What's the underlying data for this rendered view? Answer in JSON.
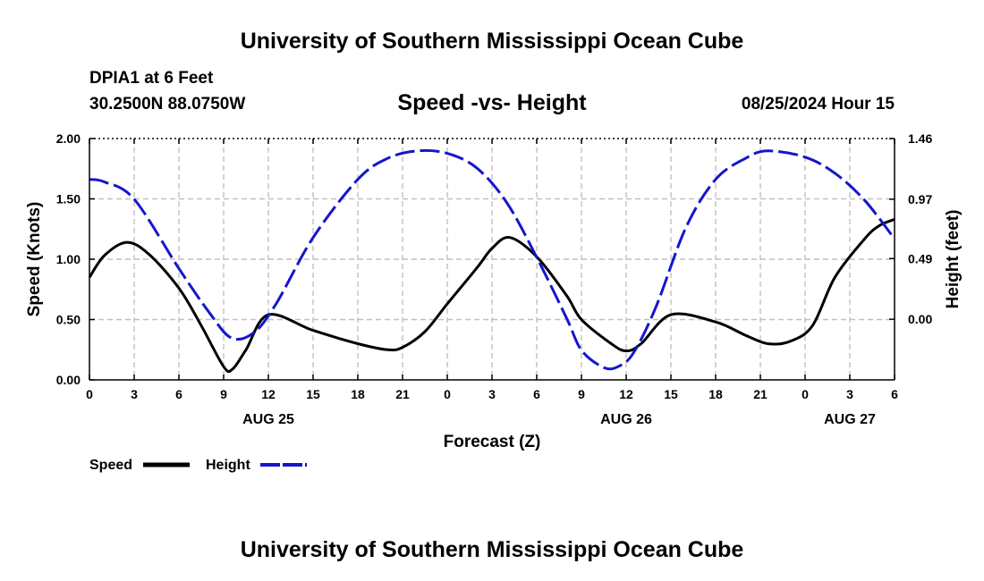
{
  "header": {
    "title": "University of Southern Mississippi Ocean Cube",
    "station": "DPIA1 at 6 Feet",
    "coords": "30.2500N  88.0750W",
    "subtitle": "Speed -vs- Height",
    "datetime": "08/25/2024 Hour 15",
    "footer_title": "University of Southern Mississippi Ocean Cube"
  },
  "chart_data": {
    "type": "line",
    "xlabel": "Forecast (Z)",
    "ylabel_left": "Speed (Knots)",
    "ylabel_right": "Height (feet)",
    "x_range": [
      0,
      54
    ],
    "ylim_left": [
      0,
      2.0
    ],
    "ylim_right": [
      -0.49,
      1.46
    ],
    "left_ticks": [
      "0.00",
      "0.50",
      "1.00",
      "1.50",
      "2.00"
    ],
    "right_ticks": [
      "0.00",
      "0.49",
      "0.97",
      "1.46"
    ],
    "x_ticks": [
      {
        "h": 0,
        "label": "0"
      },
      {
        "h": 3,
        "label": "3"
      },
      {
        "h": 6,
        "label": "6"
      },
      {
        "h": 9,
        "label": "9"
      },
      {
        "h": 12,
        "label": "12"
      },
      {
        "h": 15,
        "label": "15"
      },
      {
        "h": 18,
        "label": "18"
      },
      {
        "h": 21,
        "label": "21"
      },
      {
        "h": 24,
        "label": "0"
      },
      {
        "h": 27,
        "label": "3"
      },
      {
        "h": 30,
        "label": "6"
      },
      {
        "h": 33,
        "label": "9"
      },
      {
        "h": 36,
        "label": "12"
      },
      {
        "h": 39,
        "label": "15"
      },
      {
        "h": 42,
        "label": "18"
      },
      {
        "h": 45,
        "label": "21"
      },
      {
        "h": 48,
        "label": "0"
      },
      {
        "h": 51,
        "label": "3"
      },
      {
        "h": 54,
        "label": "6"
      }
    ],
    "date_labels": [
      {
        "h": 12,
        "label": "AUG 25"
      },
      {
        "h": 36,
        "label": "AUG 26"
      },
      {
        "h": 51,
        "label": "AUG 27"
      }
    ],
    "grid": true,
    "series": [
      {
        "name": "Speed",
        "axis": "left",
        "color": "#000000",
        "style": "solid",
        "x": [
          0,
          1,
          2.5,
          4,
          6,
          7.5,
          9,
          9.6,
          10.5,
          12,
          15,
          18,
          20,
          21,
          22.5,
          24,
          26,
          27,
          28.2,
          30,
          32,
          33,
          35,
          36,
          37,
          39,
          42,
          44,
          45.5,
          47,
          48.5,
          50,
          52,
          53,
          54
        ],
        "y": [
          0.85,
          1.03,
          1.14,
          1.04,
          0.76,
          0.45,
          0.11,
          0.09,
          0.25,
          0.54,
          0.41,
          0.3,
          0.25,
          0.27,
          0.4,
          0.63,
          0.93,
          1.09,
          1.18,
          1.02,
          0.7,
          0.5,
          0.3,
          0.24,
          0.3,
          0.54,
          0.48,
          0.37,
          0.3,
          0.32,
          0.45,
          0.85,
          1.17,
          1.28,
          1.33
        ]
      },
      {
        "name": "Height",
        "axis": "right",
        "color": "#1515cc",
        "style": "dashed",
        "x": [
          0,
          1,
          3,
          6,
          8,
          9.5,
          11,
          12.5,
          15,
          18,
          20,
          22,
          24,
          26,
          28,
          30,
          32,
          33,
          34.5,
          35.5,
          36.5,
          38,
          40,
          42,
          44,
          45.5,
          48,
          50,
          52,
          54
        ],
        "y": [
          1.13,
          1.11,
          0.97,
          0.41,
          0.06,
          -0.15,
          -0.11,
          0.12,
          0.66,
          1.13,
          1.3,
          1.36,
          1.34,
          1.22,
          0.94,
          0.5,
          0.01,
          -0.25,
          -0.39,
          -0.38,
          -0.27,
          0.1,
          0.74,
          1.13,
          1.3,
          1.36,
          1.31,
          1.18,
          0.96,
          0.65
        ]
      }
    ]
  },
  "legend": {
    "speed_label": "Speed",
    "height_label": "Height"
  }
}
